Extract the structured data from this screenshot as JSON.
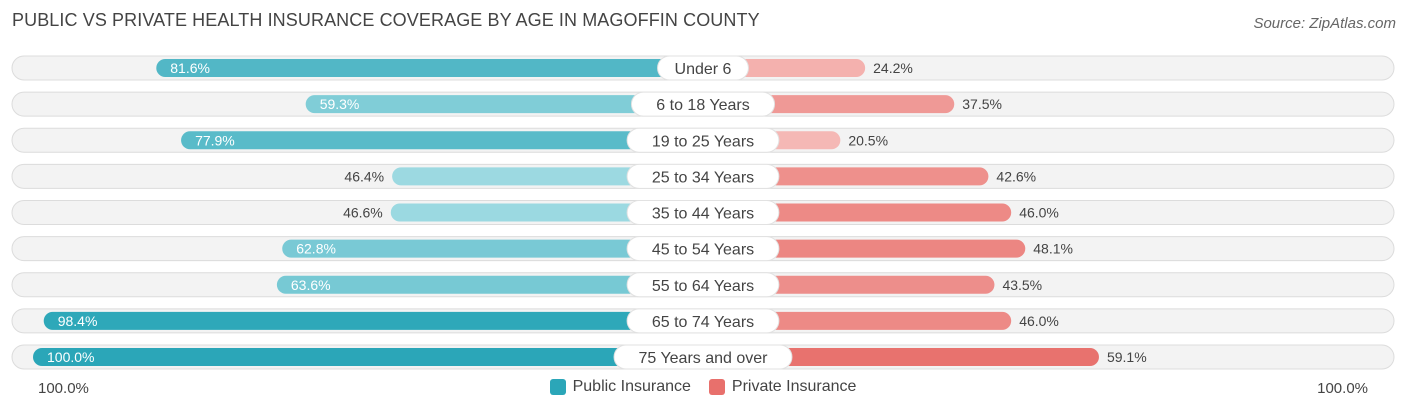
{
  "chart_data": {
    "type": "bar",
    "orientation": "horizontal-diverging",
    "title": "PUBLIC VS PRIVATE HEALTH INSURANCE COVERAGE BY AGE IN MAGOFFIN COUNTY",
    "source": "Source: ZipAtlas.com",
    "categories": [
      "Under 6",
      "6 to 18 Years",
      "19 to 25 Years",
      "25 to 34 Years",
      "35 to 44 Years",
      "45 to 54 Years",
      "55 to 64 Years",
      "65 to 74 Years",
      "75 Years and over"
    ],
    "series": [
      {
        "name": "Public Insurance",
        "color": "#2ba6b8",
        "values": [
          81.6,
          59.3,
          77.9,
          46.4,
          46.6,
          62.8,
          63.6,
          98.4,
          100.0
        ],
        "labels": [
          "81.6%",
          "59.3%",
          "77.9%",
          "46.4%",
          "46.6%",
          "62.8%",
          "63.6%",
          "98.4%",
          "100.0%"
        ]
      },
      {
        "name": "Private Insurance",
        "color": "#e8706c",
        "values": [
          24.2,
          37.5,
          20.5,
          42.6,
          46.0,
          48.1,
          43.5,
          46.0,
          59.1
        ],
        "labels": [
          "24.2%",
          "37.5%",
          "20.5%",
          "42.6%",
          "46.0%",
          "48.1%",
          "43.5%",
          "46.0%",
          "59.1%"
        ]
      }
    ],
    "xlim": [
      -100,
      100
    ],
    "axis_left_label": "100.0%",
    "axis_right_label": "100.0%",
    "legend_position": "bottom-center"
  }
}
